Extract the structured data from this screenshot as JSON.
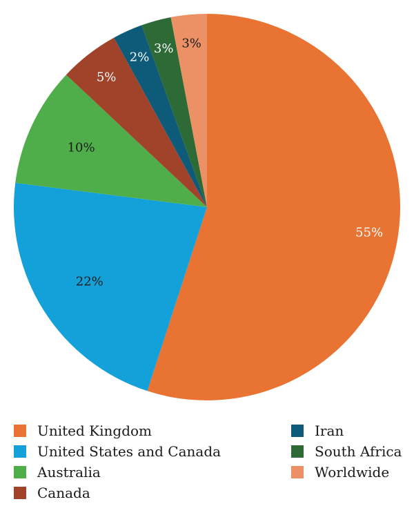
{
  "chart_data": {
    "type": "pie",
    "title": "",
    "slices": [
      {
        "name": "United Kingdom",
        "value": 55,
        "label": "55%",
        "color": "#e87332",
        "label_color": "#ffffff"
      },
      {
        "name": "United States and Canada",
        "value": 22,
        "label": "22%",
        "color": "#14a0d8",
        "label_color": "#1a1a1a"
      },
      {
        "name": "Australia",
        "value": 10,
        "label": "10%",
        "color": "#4fae4a",
        "label_color": "#1a1a1a"
      },
      {
        "name": "Canada",
        "value": 5,
        "label": "5%",
        "color": "#a0432a",
        "label_color": "#ffffff"
      },
      {
        "name": "Iran",
        "value": 2.5,
        "label": "2%",
        "color": "#0e5a79",
        "label_color": "#ffffff"
      },
      {
        "name": "South Africa",
        "value": 2.5,
        "label": "3%",
        "color": "#2e6a35",
        "label_color": "#ffffff"
      },
      {
        "name": "Worldwide",
        "value": 3,
        "label": "3%",
        "color": "#ec9165",
        "label_color": "#1a1a1a"
      }
    ],
    "start_angle": "top",
    "direction": "clockwise",
    "legend_position": "bottom"
  }
}
